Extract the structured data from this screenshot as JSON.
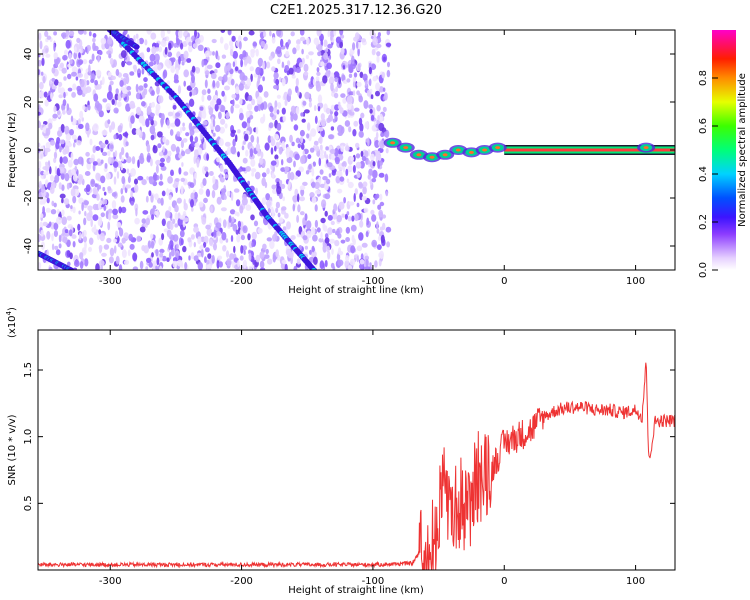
{
  "title": "C2E1.2025.317.12.36.G20",
  "spectrogram": {
    "type": "heatmap",
    "xlabel": "Height of straight line (km)",
    "ylabel": "Frequency (Hz)",
    "xlim": [
      -355,
      130
    ],
    "ylim": [
      -50,
      50
    ],
    "xticks": [
      -300,
      -200,
      -100,
      0,
      100
    ],
    "xtick_labels": [
      "-300",
      "-200",
      "-100",
      "0",
      "100"
    ],
    "yticks": [
      -40,
      -20,
      0,
      20,
      40
    ],
    "ytick_labels": [
      "-40",
      "-20",
      "0",
      "20",
      "40"
    ],
    "noise_region_x": [
      -355,
      -88
    ],
    "streak_a": [
      [
        -300,
        50
      ],
      [
        -250,
        22
      ],
      [
        -210,
        -5
      ],
      [
        -180,
        -28
      ],
      [
        -145,
        -50
      ]
    ],
    "streak_b": [
      [
        -300,
        50
      ],
      [
        -280,
        43
      ]
    ],
    "streak_c": [
      [
        -355,
        -43
      ],
      [
        -330,
        -50
      ]
    ],
    "carrier_line": {
      "x_start": 0,
      "x_end": 130,
      "freq": 0
    },
    "carrier_blobs": [
      [
        -85,
        3
      ],
      [
        -75,
        1
      ],
      [
        -65,
        -2
      ],
      [
        -55,
        -3
      ],
      [
        -45,
        -2
      ],
      [
        -35,
        0
      ],
      [
        -25,
        -1
      ],
      [
        -15,
        0
      ],
      [
        -5,
        1
      ],
      [
        108,
        1
      ]
    ]
  },
  "colorbar": {
    "label": "Normalized spectral amplitude",
    "ticks": [
      0.0,
      0.2,
      0.4,
      0.6,
      0.8
    ],
    "tick_labels": [
      "0.0",
      "0.2",
      "0.4",
      "0.6",
      "0.8"
    ],
    "range": [
      0,
      1
    ]
  },
  "chart_data": {
    "type": "line",
    "title": "C2E1.2025.317.12.36.G20",
    "xlabel": "Height of straight line (km)",
    "ylabel": "SNR (10 * v/v)",
    "y_multiplier": "(x10",
    "y_multiplier_exp": "4",
    "xlim": [
      -355,
      130
    ],
    "ylim": [
      0,
      1.8
    ],
    "xticks": [
      -300,
      -200,
      -100,
      0,
      100
    ],
    "xtick_labels": [
      "-300",
      "-200",
      "-100",
      "0",
      "100"
    ],
    "yticks": [
      0.5,
      1.0,
      1.5
    ],
    "ytick_labels": [
      "0.5",
      "1.0",
      "1.5"
    ],
    "color": "#ee3333",
    "series": [
      {
        "name": "SNR",
        "x": [
          -355,
          -300,
          -200,
          -100,
          -70,
          -60,
          -50,
          -45,
          -40,
          -35,
          -30,
          -25,
          -20,
          -15,
          -10,
          -5,
          0,
          10,
          20,
          30,
          40,
          50,
          60,
          70,
          80,
          90,
          100,
          105,
          108,
          110,
          115,
          120,
          130
        ],
        "y": [
          0.04,
          0.04,
          0.04,
          0.04,
          0.05,
          0.2,
          0.35,
          0.8,
          0.3,
          0.5,
          0.4,
          0.6,
          0.7,
          0.8,
          0.75,
          0.85,
          0.95,
          1.0,
          1.05,
          1.15,
          1.2,
          1.22,
          1.22,
          1.2,
          1.2,
          1.18,
          1.2,
          1.15,
          1.6,
          0.8,
          1.12,
          1.12,
          1.12
        ]
      }
    ]
  }
}
